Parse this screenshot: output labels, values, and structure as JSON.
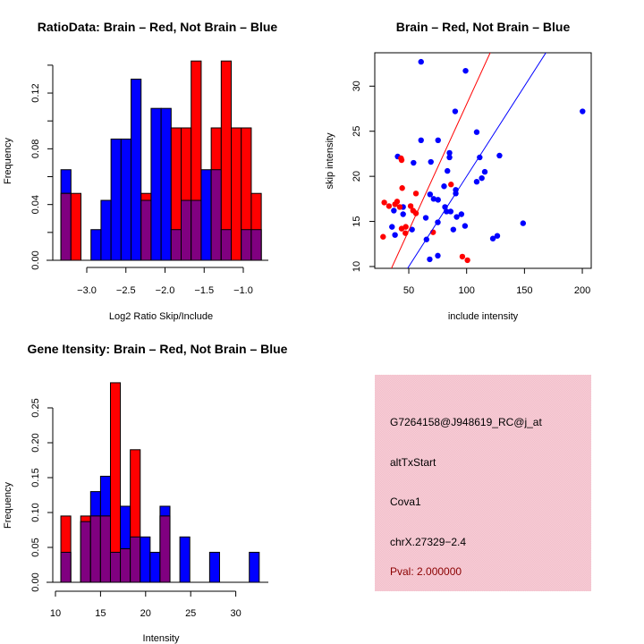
{
  "colors": {
    "red": "#ff0000",
    "blue": "#0000ff",
    "purple": "#800080",
    "pink_box": "#f4c0cb",
    "pval_text": "#8b0000"
  },
  "chart_data": [
    {
      "type": "bar",
      "id": "ratio",
      "title": "RatioData: Brain – Red, Not Brain – Blue",
      "xlabel": "Log2 Ratio Skip/Include",
      "ylabel": "Frequency",
      "bin_start": -3.33,
      "bin_width": 0.128,
      "xticks": [
        -3.0,
        -2.5,
        -2.0,
        -1.5,
        -1.0
      ],
      "xtick_labels": [
        "−3.0",
        "−2.5",
        "−2.0",
        "−1.5",
        "−1.0"
      ],
      "yticks": [
        0,
        0.02,
        0.04,
        0.06,
        0.08,
        0.1,
        0.12,
        0.14
      ],
      "ytick_labels": [
        "0.00",
        "",
        "0.04",
        "",
        "0.08",
        "",
        "0.12",
        ""
      ],
      "series": [
        {
          "name": "Not Brain",
          "color": "blue",
          "values": [
            0.065,
            0,
            0,
            0.022,
            0.043,
            0.087,
            0.087,
            0.13,
            0.043,
            0.109,
            0.109,
            0.022,
            0.043,
            0.043,
            0.065,
            0.065,
            0.022,
            0,
            0.022,
            0.022
          ]
        },
        {
          "name": "Brain",
          "color": "red",
          "values": [
            0.048,
            0.048,
            0,
            0,
            0,
            0,
            0,
            0,
            0.048,
            0,
            0,
            0.095,
            0.095,
            0.143,
            0,
            0.095,
            0.143,
            0.095,
            0.095,
            0.048
          ]
        }
      ]
    },
    {
      "type": "scatter",
      "id": "scatter",
      "title": "Brain – Red, Not Brain – Blue",
      "xlabel": "include intensity",
      "ylabel": "skip intensity",
      "xlim": [
        20.6,
        207.7
      ],
      "ylim": [
        9.8,
        33.7
      ],
      "xticks": [
        50,
        100,
        150,
        200
      ],
      "xtick_labels": [
        "50",
        "100",
        "150",
        "200"
      ],
      "yticks": [
        10,
        15,
        20,
        25,
        30
      ],
      "ytick_labels": [
        "10",
        "15",
        "20",
        "25",
        "30"
      ],
      "series": [
        {
          "name": "Not Brain",
          "color": "blue",
          "line_slope": 0.2,
          "line_intercept": 0,
          "points": [
            [
              60.6,
              32.7
            ],
            [
              99.1,
              31.7
            ],
            [
              90.1,
              27.2
            ],
            [
              200.2,
              27.2
            ],
            [
              108.7,
              24.9
            ],
            [
              60.6,
              24.0
            ],
            [
              75.3,
              24.0
            ],
            [
              40.4,
              22.2
            ],
            [
              85.2,
              22.6
            ],
            [
              85.2,
              22.1
            ],
            [
              111.3,
              22.1
            ],
            [
              128.4,
              22.3
            ],
            [
              54.1,
              21.5
            ],
            [
              69.1,
              21.6
            ],
            [
              83.4,
              20.6
            ],
            [
              115.7,
              20.5
            ],
            [
              113.1,
              19.8
            ],
            [
              108.7,
              19.4
            ],
            [
              80.5,
              18.9
            ],
            [
              90.6,
              18.5
            ],
            [
              90.6,
              18.1
            ],
            [
              68.4,
              18.0
            ],
            [
              71.5,
              17.5
            ],
            [
              75.3,
              17.4
            ],
            [
              45.1,
              16.6
            ],
            [
              81.3,
              16.6
            ],
            [
              82.6,
              16.1
            ],
            [
              86.2,
              16.1
            ],
            [
              37.1,
              16.2
            ],
            [
              45.1,
              15.8
            ],
            [
              95.5,
              15.8
            ],
            [
              91.4,
              15.5
            ],
            [
              64.7,
              15.4
            ],
            [
              75.1,
              14.9
            ],
            [
              148.8,
              14.8
            ],
            [
              98.6,
              14.5
            ],
            [
              35.5,
              14.4
            ],
            [
              52.8,
              14.1
            ],
            [
              88.5,
              14.1
            ],
            [
              38.1,
              13.5
            ],
            [
              126.5,
              13.4
            ],
            [
              122.7,
              13.1
            ],
            [
              65.3,
              13.0
            ],
            [
              75.1,
              11.2
            ],
            [
              68.1,
              10.8
            ]
          ]
        },
        {
          "name": "Brain",
          "color": "red",
          "line_slope": 0.28,
          "line_intercept": 0,
          "points": [
            [
              43.3,
              22.0
            ],
            [
              43.8,
              21.8
            ],
            [
              44.3,
              18.7
            ],
            [
              56.2,
              18.1
            ],
            [
              86.5,
              19.1
            ],
            [
              28.8,
              17.1
            ],
            [
              32.9,
              16.7
            ],
            [
              38.1,
              16.9
            ],
            [
              39.9,
              17.2
            ],
            [
              42.2,
              16.6
            ],
            [
              51.6,
              16.7
            ],
            [
              53.7,
              16.2
            ],
            [
              56.2,
              15.9
            ],
            [
              47.4,
              14.4
            ],
            [
              43.8,
              14.2
            ],
            [
              47.1,
              13.7
            ],
            [
              71.0,
              13.8
            ],
            [
              27.8,
              13.3
            ],
            [
              96.3,
              11.1
            ],
            [
              100.7,
              10.7
            ]
          ]
        }
      ]
    },
    {
      "type": "bar",
      "id": "intensity",
      "title": "Gene Itensity: Brain – Red, Not Brain – Blue",
      "xlabel": "Intensity",
      "ylabel": "Frequency",
      "bin_start": 10.6,
      "bin_width": 1.1,
      "xticks": [
        10,
        15,
        20,
        25,
        30
      ],
      "xtick_labels": [
        "10",
        "15",
        "20",
        "25",
        "30"
      ],
      "yticks": [
        0,
        0.05,
        0.1,
        0.15,
        0.2,
        0.25
      ],
      "ytick_labels": [
        "0.00",
        "0.05",
        "0.10",
        "0.15",
        "0.20",
        "0.25"
      ],
      "series": [
        {
          "name": "Not Brain",
          "color": "blue",
          "values": [
            0.043,
            0,
            0.087,
            0.13,
            0.152,
            0.043,
            0.109,
            0.065,
            0.065,
            0.043,
            0.109,
            0,
            0.065,
            0,
            0,
            0.043,
            0,
            0,
            0,
            0.043
          ]
        },
        {
          "name": "Brain",
          "color": "red",
          "values": [
            0.095,
            0,
            0.095,
            0.095,
            0.095,
            0.286,
            0.048,
            0.19,
            0,
            0,
            0.095,
            0,
            0,
            0,
            0,
            0,
            0,
            0,
            0,
            0
          ]
        }
      ]
    }
  ],
  "info_box": {
    "probe_id": "G7264158@J948619_RC@j_at",
    "event_type": "altTxStart",
    "gene": "Cova1",
    "location": "chrX.27329−2.4",
    "pval": "Pval: 2.000000"
  }
}
